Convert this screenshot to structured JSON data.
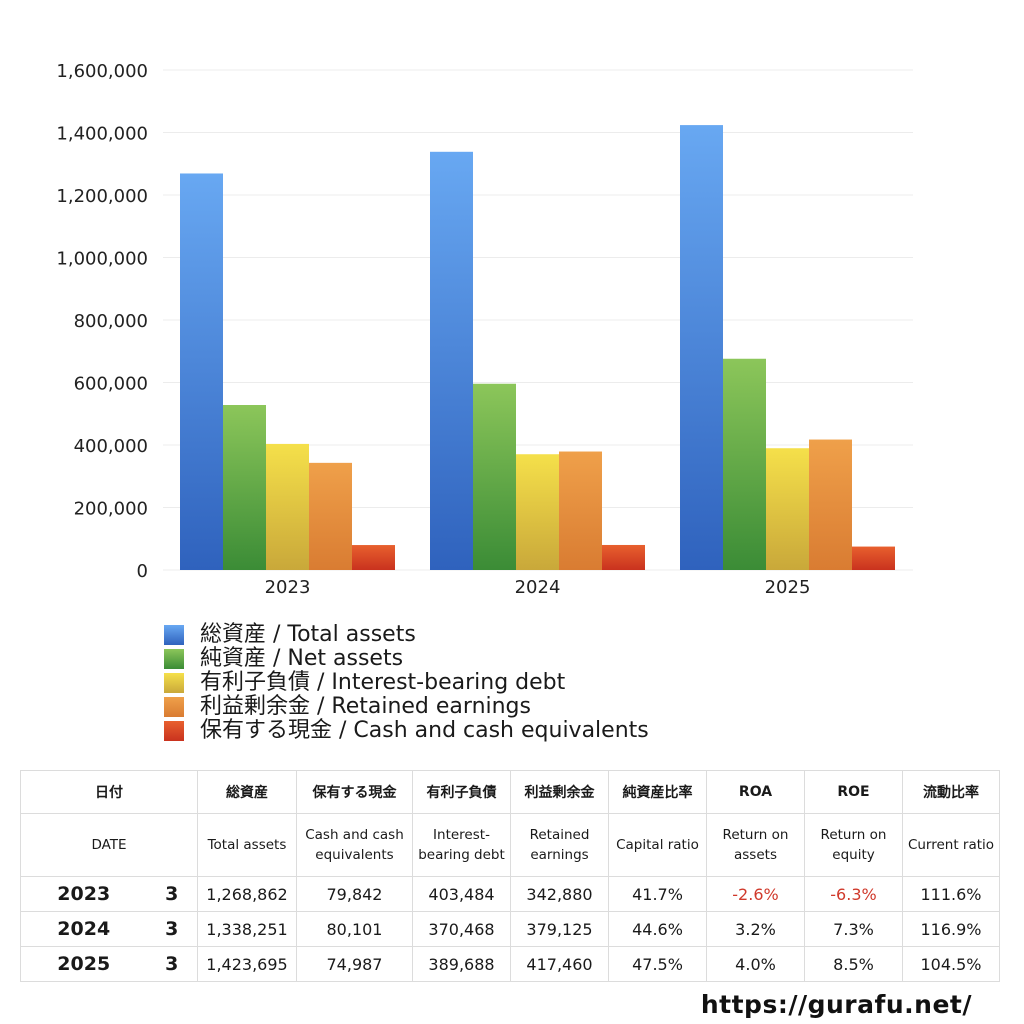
{
  "chart_data": {
    "type": "bar",
    "categories": [
      "2023",
      "2024",
      "2025"
    ],
    "ylim": [
      0,
      1600000
    ],
    "yticks": [
      "0",
      "200,000",
      "400,000",
      "600,000",
      "800,000",
      "1,000,000",
      "1,200,000",
      "1,400,000",
      "1,600,000"
    ],
    "ytick_values": [
      0,
      200000,
      400000,
      600000,
      800000,
      1000000,
      1200000,
      1400000,
      1600000
    ],
    "grid": true,
    "legend_position": "bottom-left",
    "series": [
      {
        "name": "総資産 / Total assets",
        "color_top": "#68a8f2",
        "color_bottom": "#2f62bd",
        "values": [
          1268862,
          1338251,
          1423695
        ]
      },
      {
        "name": "純資産 / Net assets",
        "color_top": "#8cc65a",
        "color_bottom": "#3b8c36",
        "values": [
          528000,
          596000,
          676000
        ]
      },
      {
        "name": "有利子負債 / Interest-bearing debt",
        "color_top": "#f5e04a",
        "color_bottom": "#c9a83a",
        "values": [
          403484,
          370468,
          389688
        ]
      },
      {
        "name": "利益剰余金 / Retained earnings",
        "color_top": "#efa04a",
        "color_bottom": "#d97c32",
        "values": [
          342880,
          379125,
          417460
        ]
      },
      {
        "name": "保有する現金 /  Cash and cash equivalents",
        "color_top": "#e8602e",
        "color_bottom": "#c9321e",
        "values": [
          79842,
          80101,
          74987
        ]
      }
    ]
  },
  "table": {
    "header_jp": [
      "日付",
      "総資産",
      "保有する現金",
      "有利子負債",
      "利益剰余金",
      "純資産比率",
      "ROA",
      "ROE",
      "流動比率"
    ],
    "header_en": [
      "DATE",
      "Total assets",
      "Cash and cash equivalents",
      "Interest-bearing debt",
      "Retained earnings",
      "Capital ratio",
      "Return on assets",
      "Return on equity",
      "Current ratio"
    ],
    "rows": [
      {
        "year": "2023",
        "month": "3",
        "total_assets": "1,268,862",
        "cash": "79,842",
        "debt": "403,484",
        "retained": "342,880",
        "capital_ratio": "41.7%",
        "roa": "-2.6%",
        "roe": "-6.3%",
        "current_ratio": "111.6%"
      },
      {
        "year": "2024",
        "month": "3",
        "total_assets": "1,338,251",
        "cash": "80,101",
        "debt": "370,468",
        "retained": "379,125",
        "capital_ratio": "44.6%",
        "roa": "3.2%",
        "roe": "7.3%",
        "current_ratio": "116.9%"
      },
      {
        "year": "2025",
        "month": "3",
        "total_assets": "1,423,695",
        "cash": "74,987",
        "debt": "389,688",
        "retained": "417,460",
        "capital_ratio": "47.5%",
        "roa": "4.0%",
        "roe": "8.5%",
        "current_ratio": "104.5%"
      }
    ],
    "negative_color": "#d0392b"
  },
  "footer": {
    "url": "https://gurafu.net/"
  }
}
